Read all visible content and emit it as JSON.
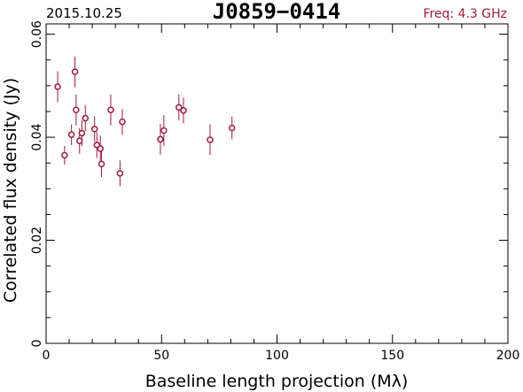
{
  "header": {
    "date": "2015.10.25",
    "source": "J0859−0414",
    "freq": "Freq: 4.3 GHz"
  },
  "colors": {
    "point": "#a0183c",
    "axis": "#000000",
    "freq_text": "#a0183c"
  },
  "chart_data": {
    "type": "scatter",
    "title": "J0859−0414",
    "xlabel": "Baseline length projection (Mλ)",
    "ylabel": "Correlated flux density (Jy)",
    "xlim": [
      0,
      200
    ],
    "ylim": [
      0,
      0.062
    ],
    "x_ticks": [
      0,
      50,
      100,
      150,
      200
    ],
    "x_tick_labels": [
      "0",
      "50",
      "100",
      "150",
      "200"
    ],
    "y_ticks": [
      0,
      0.02,
      0.04,
      0.06
    ],
    "y_tick_labels": [
      "0",
      "0.02",
      "0.04",
      "0.06"
    ],
    "grid": false,
    "points": [
      {
        "x": 5,
        "y": 0.0498,
        "err": 0.003
      },
      {
        "x": 8,
        "y": 0.0365,
        "err": 0.0018
      },
      {
        "x": 11,
        "y": 0.0405,
        "err": 0.002
      },
      {
        "x": 12.5,
        "y": 0.0527,
        "err": 0.003
      },
      {
        "x": 13,
        "y": 0.0453,
        "err": 0.003
      },
      {
        "x": 14.5,
        "y": 0.0393,
        "err": 0.0025
      },
      {
        "x": 15.5,
        "y": 0.0408,
        "err": 0.0025
      },
      {
        "x": 17,
        "y": 0.0437,
        "err": 0.0025
      },
      {
        "x": 21,
        "y": 0.0416,
        "err": 0.0025
      },
      {
        "x": 22,
        "y": 0.0385,
        "err": 0.0025
      },
      {
        "x": 23.5,
        "y": 0.0378,
        "err": 0.0025
      },
      {
        "x": 24,
        "y": 0.0348,
        "err": 0.0025
      },
      {
        "x": 28,
        "y": 0.0453,
        "err": 0.003
      },
      {
        "x": 32,
        "y": 0.033,
        "err": 0.0025
      },
      {
        "x": 33,
        "y": 0.043,
        "err": 0.0025
      },
      {
        "x": 49.5,
        "y": 0.0396,
        "err": 0.003
      },
      {
        "x": 51,
        "y": 0.0413,
        "err": 0.003
      },
      {
        "x": 57.5,
        "y": 0.0458,
        "err": 0.0025
      },
      {
        "x": 59.5,
        "y": 0.0452,
        "err": 0.0025
      },
      {
        "x": 71,
        "y": 0.0395,
        "err": 0.003
      },
      {
        "x": 80.5,
        "y": 0.0418,
        "err": 0.0022
      }
    ]
  }
}
